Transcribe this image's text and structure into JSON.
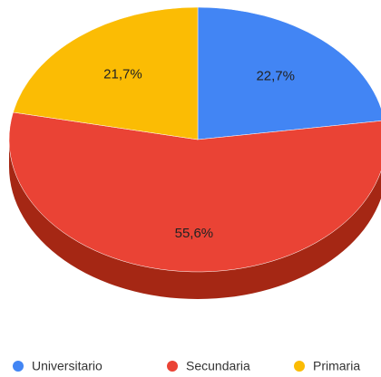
{
  "chart_data": {
    "type": "pie",
    "categories": [
      "Universitario",
      "Secundaria",
      "Primaria"
    ],
    "values": [
      22.7,
      55.6,
      21.7
    ],
    "value_labels": [
      "22,7%",
      "55,6%",
      "21,7%"
    ],
    "colors": [
      "#4285f4",
      "#ea4335",
      "#fbbc04"
    ],
    "side_colors": [
      "#2a56c6",
      "#a52714",
      "#c88f00"
    ],
    "legend": "bottom"
  }
}
